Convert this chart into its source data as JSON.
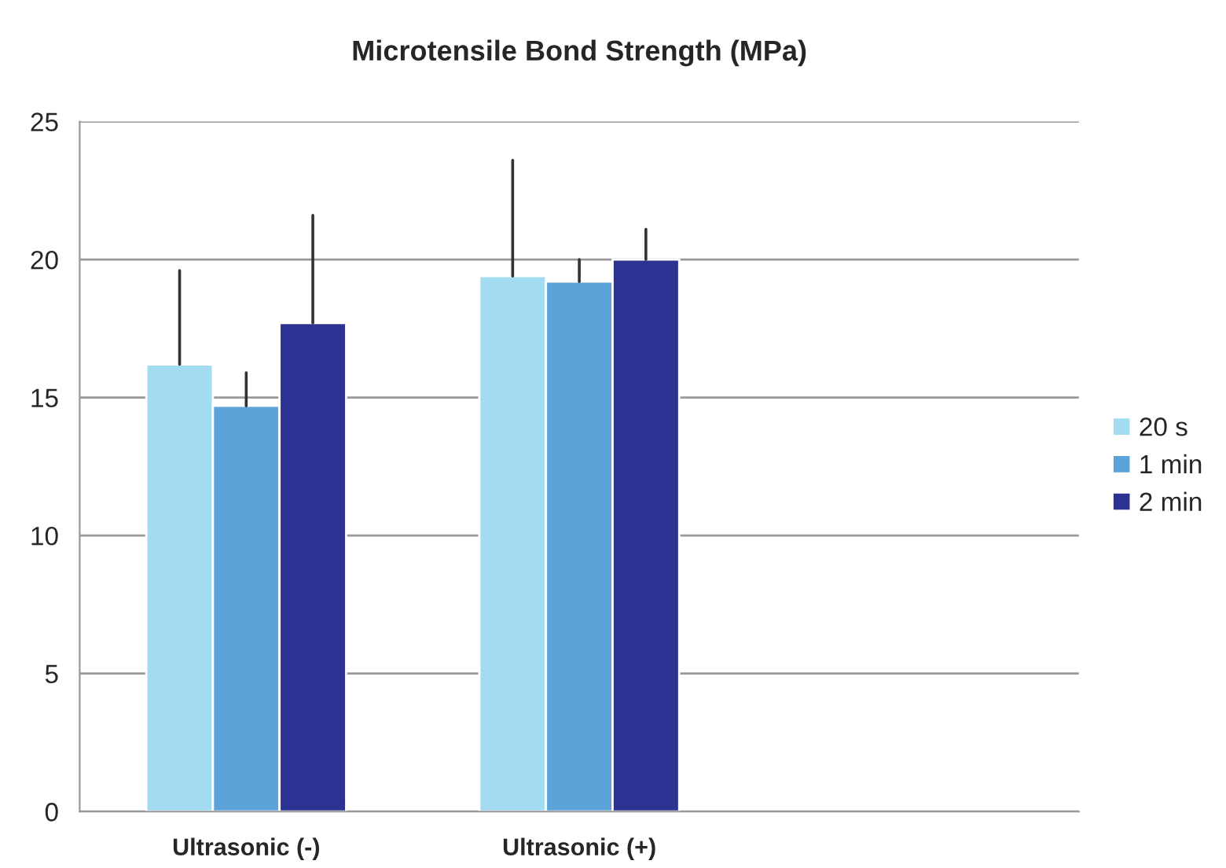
{
  "chart_data": {
    "type": "bar",
    "title": "Microtensile Bond Strength (MPa)",
    "categories": [
      "Ultrasonic (-)",
      "Ultrasonic (+)",
      null
    ],
    "series": [
      {
        "name": "20 s",
        "color": "#a3dcf0",
        "values": [
          16.2,
          19.4,
          null
        ],
        "errors": [
          [
            16.2,
            19.6
          ],
          [
            19.4,
            23.6
          ],
          null
        ]
      },
      {
        "name": "1 min",
        "color": "#5ba3d8",
        "values": [
          14.7,
          19.2,
          null
        ],
        "errors": [
          [
            14.7,
            15.9
          ],
          [
            19.2,
            20.0
          ],
          null
        ]
      },
      {
        "name": "2 min",
        "color": "#2b3292",
        "values": [
          17.7,
          20.0,
          null
        ],
        "errors": [
          [
            17.7,
            21.6
          ],
          [
            20.0,
            21.1
          ],
          null
        ]
      }
    ],
    "ylim": [
      0,
      25
    ],
    "yticks": [
      0,
      5,
      10,
      15,
      20,
      25
    ],
    "grid": "y",
    "legend": "right"
  }
}
